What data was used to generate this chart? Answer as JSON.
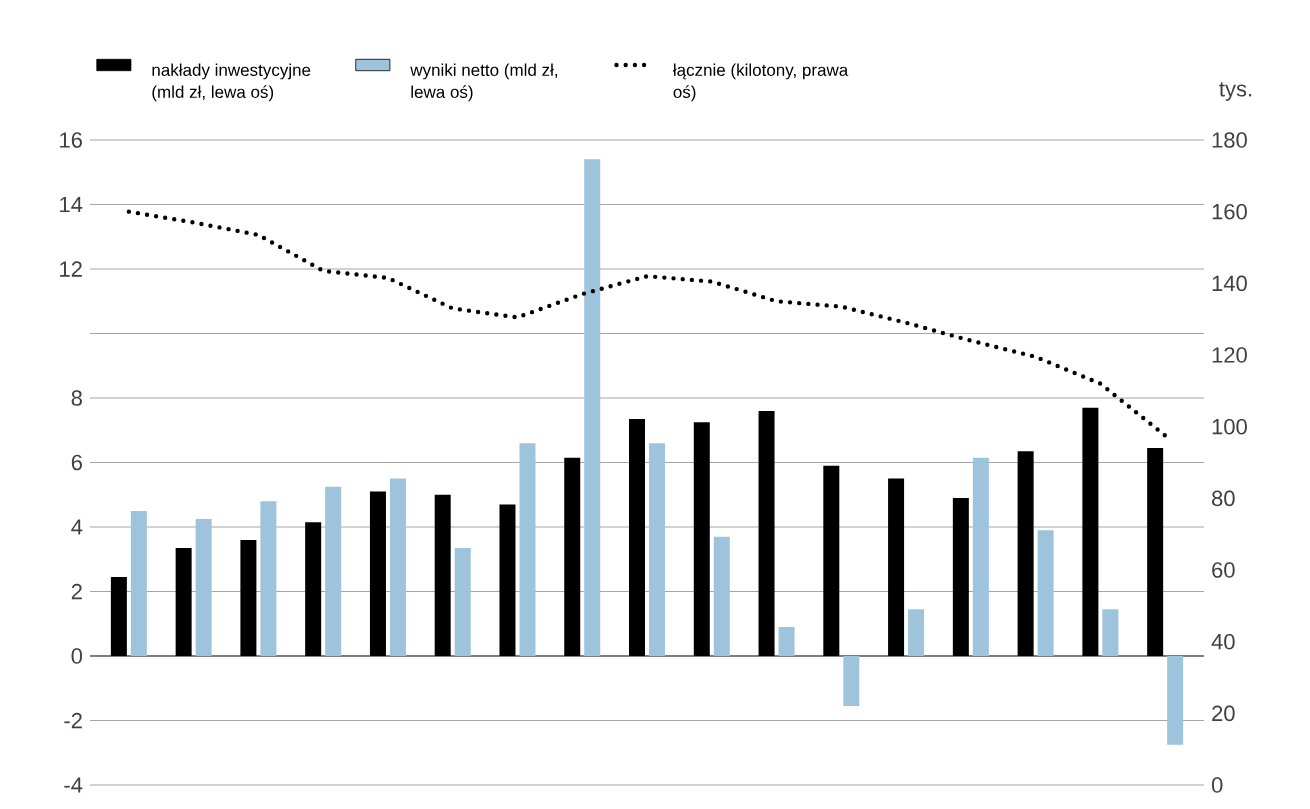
{
  "chart_data": {
    "type": "bar",
    "categories": [
      null,
      null,
      null,
      null,
      null,
      null,
      null,
      null,
      null,
      null,
      null,
      null,
      null,
      null,
      null,
      null,
      null
    ],
    "series": [
      {
        "name": "nakłady inwestycyjne (mld zł, lewa oś)",
        "color": "#000000",
        "values": [
          2.45,
          3.35,
          3.6,
          4.15,
          5.1,
          5.0,
          4.7,
          6.15,
          7.35,
          7.25,
          7.6,
          5.9,
          5.5,
          4.9,
          6.35,
          7.7,
          6.45
        ]
      },
      {
        "name": "wyniki netto (mld zł, lewa oś)",
        "color": "#9dc3dd",
        "values": [
          4.5,
          4.25,
          4.8,
          5.25,
          5.5,
          3.35,
          6.6,
          15.4,
          6.6,
          3.7,
          0.9,
          -1.55,
          1.45,
          6.15,
          3.9,
          1.45,
          -2.75
        ]
      },
      {
        "name": "łącznie (kilotony, prawa oś)",
        "type": "line",
        "axis": "y2",
        "color": "#000000",
        "line_style": "dotted",
        "marker": "none",
        "values": [
          160,
          157,
          153.5,
          143.5,
          141.5,
          133,
          130.5,
          137,
          142,
          140.5,
          135,
          133.5,
          129,
          124,
          119.5,
          112,
          97.5
        ]
      }
    ],
    "ylim": [
      -4,
      16
    ],
    "yticks": [
      -4,
      -2,
      0,
      2,
      4,
      6,
      8,
      {
        "value": 10,
        "label": null
      },
      12,
      14,
      16
    ],
    "y2label": "tys.",
    "y2lim": [
      0,
      180
    ],
    "y2ticks": [
      0,
      20,
      40,
      60,
      80,
      100,
      120,
      140,
      160,
      180
    ],
    "grid": "y",
    "legend": "top left"
  }
}
